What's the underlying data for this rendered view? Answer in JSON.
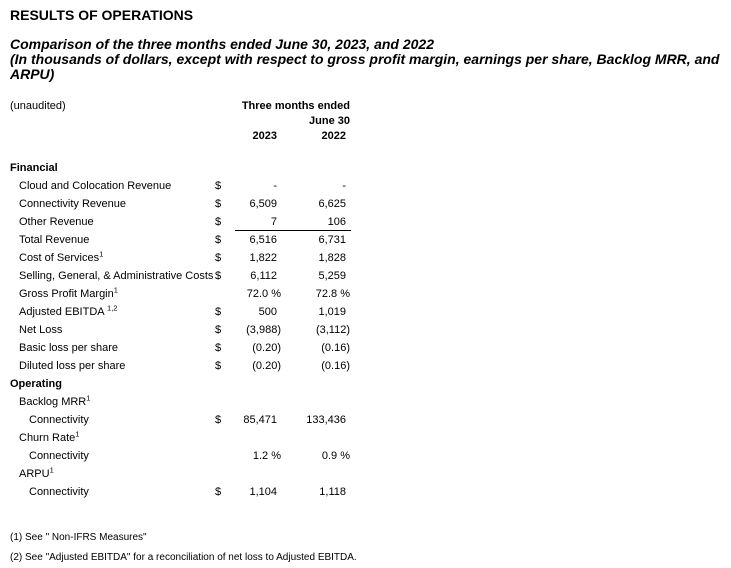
{
  "page": {
    "title": "RESULTS OF OPERATIONS",
    "subtitle_line1": "Comparison of the three months ended June 30, 2023, and 2022",
    "subtitle_note": "(In thousands of dollars, except with respect to gross profit margin, earnings per share, Backlog MRR, and ARPU)"
  },
  "table": {
    "unaudited_label": "(unaudited)",
    "period_header": "Three months ended",
    "period_subheader": "June 30",
    "columns": [
      "2023",
      "2022"
    ],
    "rows": [
      {
        "type": "section",
        "label": "Financial",
        "sup": ""
      },
      {
        "type": "data",
        "indent": 1,
        "label": "Cloud and Colocation Revenue",
        "sup": "",
        "dollar": "$",
        "v2023": "-",
        "v2022": "-"
      },
      {
        "type": "data",
        "indent": 1,
        "label": "Connectivity Revenue",
        "sup": "",
        "dollar": "$",
        "v2023": "6,509",
        "v2022": "6,625"
      },
      {
        "type": "data",
        "indent": 1,
        "label": "Other Revenue",
        "sup": "",
        "dollar": "$",
        "v2023": "7",
        "v2022": "106",
        "underline": true
      },
      {
        "type": "data",
        "indent": 1,
        "label": "Total Revenue",
        "sup": "",
        "dollar": "$",
        "v2023": "6,516",
        "v2022": "6,731"
      },
      {
        "type": "data",
        "indent": 1,
        "label": "Cost of Services",
        "sup": "1",
        "dollar": "$",
        "v2023": "1,822",
        "v2022": "1,828"
      },
      {
        "type": "data",
        "indent": 1,
        "label": "Selling, General, & Administrative Costs",
        "sup": "",
        "dollar": "$",
        "v2023": "6,112",
        "v2022": "5,259"
      },
      {
        "type": "data",
        "indent": 1,
        "label": "Gross Profit Margin",
        "sup": "1",
        "dollar": "",
        "v2023": "72.0 %",
        "v2022": "72.8 %"
      },
      {
        "type": "data",
        "indent": 1,
        "label": "Adjusted EBITDA ",
        "sup": "1,2",
        "dollar": "$",
        "v2023": "500",
        "v2022": "1,019"
      },
      {
        "type": "data",
        "indent": 1,
        "label": "Net Loss",
        "sup": "",
        "dollar": "$",
        "v2023": "(3,988)",
        "v2022": "(3,112)"
      },
      {
        "type": "data",
        "indent": 1,
        "label": "Basic loss per share",
        "sup": "",
        "dollar": "$",
        "v2023": "(0.20)",
        "v2022": "(0.16)"
      },
      {
        "type": "data",
        "indent": 1,
        "label": "Diluted loss per share",
        "sup": "",
        "dollar": "$",
        "v2023": "(0.20)",
        "v2022": "(0.16)"
      },
      {
        "type": "section",
        "label": "Operating",
        "sup": ""
      },
      {
        "type": "data",
        "indent": 1,
        "label": "Backlog MRR",
        "sup": "1",
        "dollar": "",
        "v2023": "",
        "v2022": ""
      },
      {
        "type": "data",
        "indent": 2,
        "label": "Connectivity",
        "sup": "",
        "dollar": "$",
        "v2023": "85,471",
        "v2022": "133,436"
      },
      {
        "type": "data",
        "indent": 1,
        "label": "Churn Rate",
        "sup": "1",
        "dollar": "",
        "v2023": "",
        "v2022": ""
      },
      {
        "type": "data",
        "indent": 2,
        "label": "Connectivity",
        "sup": "",
        "dollar": "",
        "v2023": "1.2 %",
        "v2022": "0.9 %"
      },
      {
        "type": "data",
        "indent": 1,
        "label": "ARPU",
        "sup": "1",
        "dollar": "",
        "v2023": "",
        "v2022": ""
      },
      {
        "type": "data",
        "indent": 2,
        "label": "Connectivity",
        "sup": "",
        "dollar": "$",
        "v2023": "1,104",
        "v2022": "1,118"
      }
    ]
  },
  "footnotes": [
    "(1) See \" Non-IFRS Measures\"",
    "(2) See \"Adjusted EBITDA\" for a reconciliation of net loss to Adjusted EBITDA."
  ]
}
